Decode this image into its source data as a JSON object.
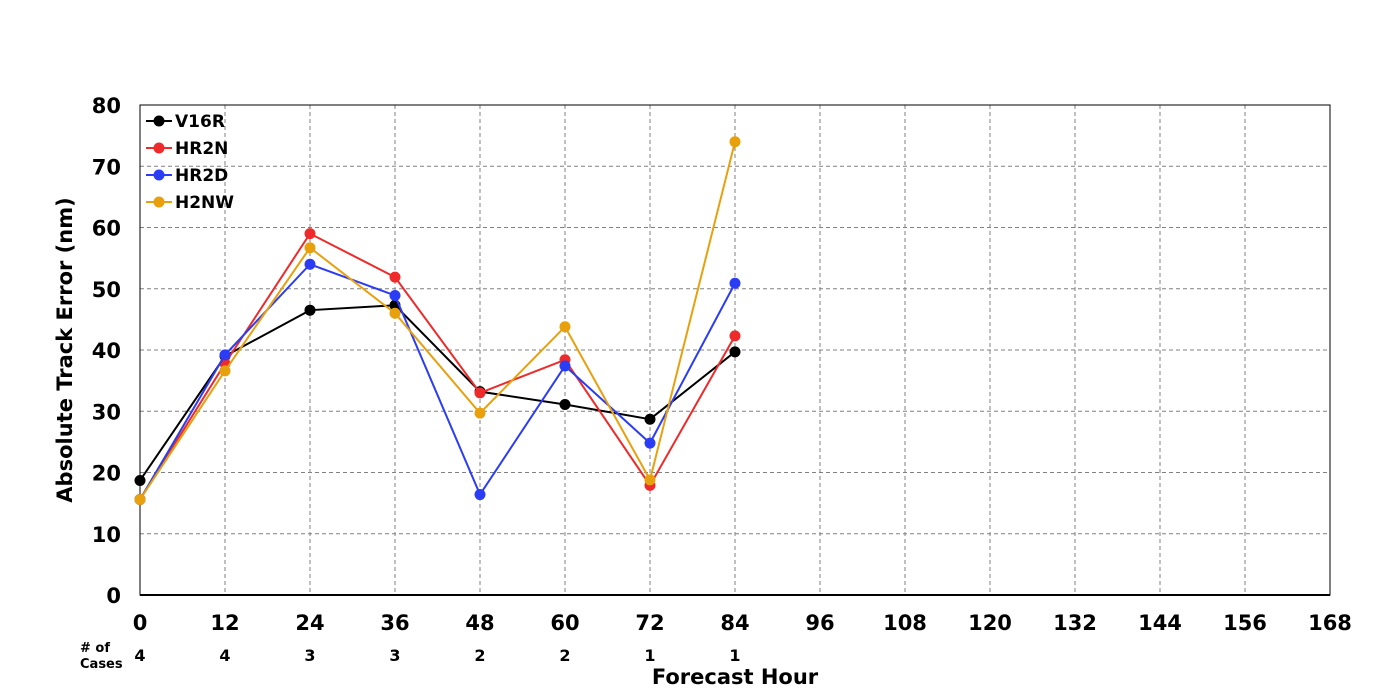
{
  "chart_data": {
    "type": "line",
    "xlabel": "Forecast Hour",
    "ylabel": "Absolute Track Error (nm)",
    "xlim": [
      0,
      168
    ],
    "ylim": [
      0,
      80
    ],
    "x_ticks": [
      0,
      12,
      24,
      36,
      48,
      60,
      72,
      84,
      96,
      108,
      120,
      132,
      144,
      156,
      168
    ],
    "y_ticks": [
      0,
      10,
      20,
      30,
      40,
      50,
      60,
      70,
      80
    ],
    "grid": true,
    "legend_position": "top-left",
    "series": [
      {
        "name": "V16R",
        "color": "#000000",
        "x": [
          0,
          12,
          24,
          36,
          48,
          60,
          72,
          84
        ],
        "values": [
          18.7,
          39.0,
          46.5,
          47.3,
          33.2,
          31.1,
          28.7,
          39.7
        ]
      },
      {
        "name": "HR2N",
        "color": "#ee2a2a",
        "x": [
          0,
          12,
          24,
          36,
          48,
          60,
          72,
          84
        ],
        "values": [
          15.6,
          37.8,
          59.0,
          51.9,
          33.0,
          38.4,
          17.9,
          42.3
        ]
      },
      {
        "name": "HR2D",
        "color": "#2b3cf5",
        "x": [
          0,
          12,
          24,
          36,
          48,
          60,
          72,
          84
        ],
        "values": [
          15.6,
          39.2,
          54.0,
          48.9,
          16.4,
          37.4,
          24.8,
          50.9
        ]
      },
      {
        "name": "H2NW",
        "color": "#e8a00c",
        "x": [
          0,
          12,
          24,
          36,
          48,
          60,
          72,
          84
        ],
        "values": [
          15.6,
          36.6,
          56.7,
          46.0,
          29.7,
          43.8,
          18.8,
          74.0
        ]
      }
    ],
    "cases": {
      "label_line1": "# of",
      "label_line2": "Cases",
      "x": [
        0,
        12,
        24,
        36,
        48,
        60,
        72,
        84
      ],
      "counts": [
        "4",
        "4",
        "3",
        "3",
        "2",
        "2",
        "1",
        "1"
      ]
    }
  }
}
